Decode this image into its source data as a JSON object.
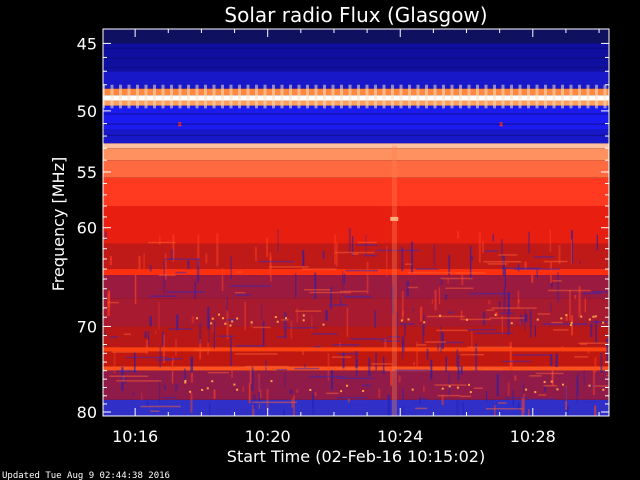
{
  "chart_data": {
    "type": "heatmap",
    "title": "Solar radio Flux (Glasgow)",
    "xlabel": "Start Time (02-Feb-16 10:15:02)",
    "ylabel": "Frequency [MHz]",
    "x_tick_labels": [
      "10:16",
      "10:20",
      "10:24",
      "10:28"
    ],
    "x_tick_minutes": [
      16,
      20,
      24,
      28
    ],
    "x_range_minutes": [
      15.03,
      30.3
    ],
    "y_tick_labels": [
      "45",
      "50",
      "55",
      "60",
      "70",
      "80"
    ],
    "y_tick_values": [
      45,
      50,
      55,
      60,
      70,
      80
    ],
    "y_range": [
      44.0,
      80.5
    ],
    "y_scale": "log",
    "bands": [
      {
        "from": 44.0,
        "to": 45.0,
        "color": "#101060"
      },
      {
        "from": 45.0,
        "to": 47.0,
        "color": "#1010a0"
      },
      {
        "from": 47.0,
        "to": 48.3,
        "color": "#1818c8"
      },
      {
        "from": 48.3,
        "to": 48.8,
        "color": "#ff8840"
      },
      {
        "from": 48.8,
        "to": 49.2,
        "color": "#ffffff"
      },
      {
        "from": 49.2,
        "to": 49.6,
        "color": "#ffa060"
      },
      {
        "from": 49.6,
        "to": 51.5,
        "color": "#1b1bf0"
      },
      {
        "from": 51.5,
        "to": 52.6,
        "color": "#1818c8"
      },
      {
        "from": 52.6,
        "to": 53.0,
        "color": "#ffc0a0"
      },
      {
        "from": 53.0,
        "to": 54.0,
        "color": "#ff9060"
      },
      {
        "from": 54.0,
        "to": 55.5,
        "color": "#ff6a40"
      },
      {
        "from": 55.5,
        "to": 58.0,
        "color": "#ff3a20"
      },
      {
        "from": 58.0,
        "to": 61.5,
        "color": "#e81e10"
      },
      {
        "from": 61.5,
        "to": 64.0,
        "color": "#c01a18"
      },
      {
        "from": 64.0,
        "to": 64.6,
        "color": "#ff3010"
      },
      {
        "from": 64.6,
        "to": 67.0,
        "color": "#9a1a40"
      },
      {
        "from": 67.0,
        "to": 70.0,
        "color": "#a81a30"
      },
      {
        "from": 70.0,
        "to": 72.3,
        "color": "#b81818"
      },
      {
        "from": 72.3,
        "to": 72.8,
        "color": "#ff4010"
      },
      {
        "from": 72.8,
        "to": 74.5,
        "color": "#c01810"
      },
      {
        "from": 74.5,
        "to": 75.0,
        "color": "#ff5020"
      },
      {
        "from": 75.0,
        "to": 78.5,
        "color": "#901a48"
      },
      {
        "from": 78.5,
        "to": 80.5,
        "color": "#3030c8"
      }
    ],
    "colors": {
      "background": "#000000",
      "frame": "#ffffff"
    }
  },
  "footer": {
    "updated": "Updated Tue Aug  9 02:44:38 2016"
  }
}
